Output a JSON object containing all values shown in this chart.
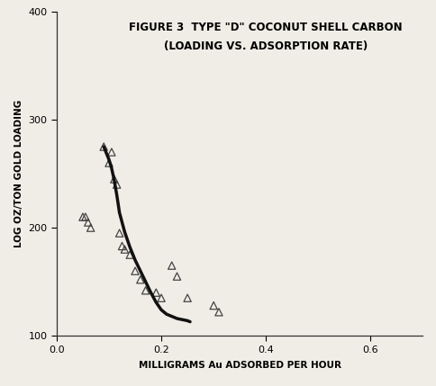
{
  "title_line1": "FIGURE 3  TYPE \"D\" COCONUT SHELL CARBON",
  "title_line2": "(LOADING VS. ADSORPTION RATE)",
  "xlabel": "MILLIGRAMS Au ADSORBED PER HOUR",
  "ylabel": "LOG OZ/TON GOLD LOADING",
  "xlim": [
    0,
    0.7
  ],
  "ylim": [
    100,
    400
  ],
  "xticks": [
    0,
    0.2,
    0.4,
    0.6
  ],
  "yticks": [
    100,
    200,
    300,
    400
  ],
  "scatter_x": [
    0.05,
    0.055,
    0.06,
    0.065,
    0.09,
    0.1,
    0.105,
    0.11,
    0.115,
    0.12,
    0.125,
    0.13,
    0.14,
    0.15,
    0.16,
    0.17,
    0.19,
    0.2,
    0.22,
    0.23,
    0.25,
    0.3,
    0.31
  ],
  "scatter_y": [
    210,
    210,
    205,
    200,
    275,
    260,
    270,
    245,
    240,
    195,
    183,
    180,
    175,
    160,
    152,
    142,
    140,
    135,
    165,
    155,
    135,
    128,
    122
  ],
  "curve_x": [
    0.09,
    0.1,
    0.105,
    0.11,
    0.115,
    0.12,
    0.13,
    0.14,
    0.15,
    0.16,
    0.17,
    0.18,
    0.19,
    0.2,
    0.21,
    0.22,
    0.23,
    0.24,
    0.25,
    0.255
  ],
  "curve_y": [
    275,
    263,
    255,
    244,
    230,
    214,
    196,
    182,
    170,
    160,
    150,
    140,
    131,
    124,
    120,
    118,
    116,
    115,
    114,
    113
  ],
  "marker_color": "#444444",
  "curve_color": "#111111",
  "bg_color": "#f0ede6",
  "title_fontsize": 8.5,
  "axis_label_fontsize": 7.5,
  "tick_fontsize": 8
}
